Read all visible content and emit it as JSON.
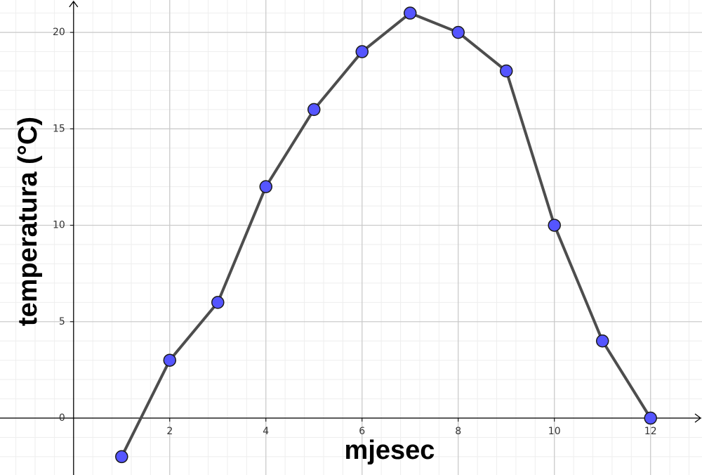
{
  "chart_data": {
    "type": "line",
    "x_label": "mjesec",
    "y_label": "temperatura (°C)",
    "x": [
      1,
      2,
      3,
      4,
      5,
      6,
      7,
      8,
      9,
      10,
      11,
      12
    ],
    "values": [
      -2,
      3,
      6,
      12,
      16,
      19,
      21,
      20,
      18,
      10,
      4,
      0
    ],
    "line_color": "#4d4d4d",
    "marker_color": "#5555ff",
    "xlim": [
      -1.53,
      13.07
    ],
    "ylim": [
      -2.95,
      21.68
    ],
    "xticks": [
      2,
      4,
      6,
      8,
      10,
      12
    ],
    "yticks": [
      0,
      5,
      10,
      15,
      20
    ],
    "grid": true
  }
}
